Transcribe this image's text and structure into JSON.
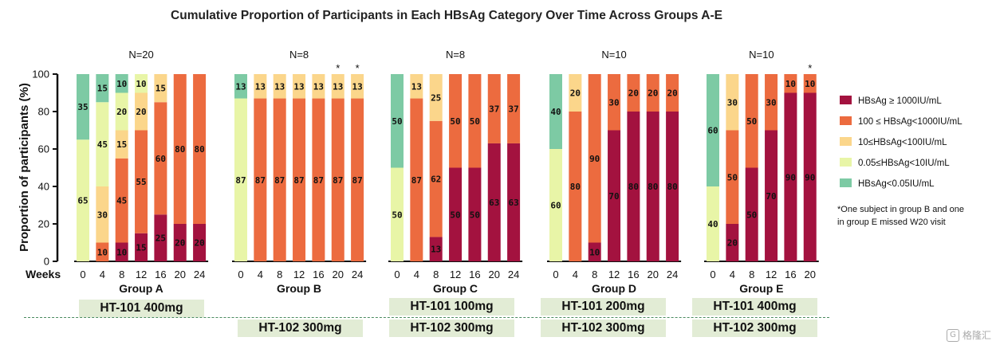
{
  "chart_data": {
    "type": "bar",
    "stacked": true,
    "title": "Cumulative Proportion of Participants in Each HBsAg Category Over Time Across Groups A-E",
    "ylabel": "Proportion of participants (%)",
    "xlabel": "Weeks",
    "ylim": [
      0,
      100
    ],
    "yticks": [
      0,
      20,
      40,
      60,
      80,
      100
    ],
    "grid": false,
    "legend_position": "right",
    "categories_legend": [
      {
        "name": "HBsAg ≥ 1000IU/mL",
        "color": "#a3123f"
      },
      {
        "name": "100 ≤ HBsAg<1000IU/mL",
        "color": "#ec6b3f"
      },
      {
        "name": "10≤HBsAg<100IU/mL",
        "color": "#fbd68b"
      },
      {
        "name": "0.05≤HBsAg<10IU/mL",
        "color": "#e8f5a7"
      },
      {
        "name": "HBsAg<0.05IU/mL",
        "color": "#7dcaa4"
      }
    ],
    "groups": [
      {
        "name": "Group A",
        "n_label": "N=20",
        "weeks": [
          "0",
          "4",
          "8",
          "12",
          "16",
          "20",
          "24"
        ],
        "asterisks": [],
        "series": [
          [
            0,
            0,
            10,
            15,
            25,
            20,
            20
          ],
          [
            0,
            10,
            45,
            55,
            60,
            80,
            80
          ],
          [
            0,
            30,
            15,
            20,
            15,
            0,
            0
          ],
          [
            65,
            45,
            20,
            10,
            0,
            0,
            0
          ],
          [
            35,
            15,
            10,
            0,
            0,
            0,
            0
          ]
        ]
      },
      {
        "name": "Group B",
        "n_label": "N=8",
        "weeks": [
          "0",
          "4",
          "8",
          "12",
          "16",
          "20",
          "24"
        ],
        "asterisks": [
          "20",
          "24"
        ],
        "series": [
          [
            0,
            0,
            0,
            0,
            0,
            0,
            0
          ],
          [
            0,
            87,
            87,
            87,
            87,
            87,
            87
          ],
          [
            0,
            13,
            13,
            13,
            13,
            13,
            13
          ],
          [
            87,
            0,
            0,
            0,
            0,
            0,
            0
          ],
          [
            13,
            0,
            0,
            0,
            0,
            0,
            0
          ]
        ]
      },
      {
        "name": "Group C",
        "n_label": "N=8",
        "weeks": [
          "0",
          "4",
          "8",
          "12",
          "16",
          "20",
          "24"
        ],
        "asterisks": [],
        "series": [
          [
            0,
            0,
            13,
            50,
            50,
            63,
            63
          ],
          [
            0,
            87,
            62,
            50,
            50,
            37,
            37
          ],
          [
            0,
            13,
            25,
            0,
            0,
            0,
            0
          ],
          [
            50,
            0,
            0,
            0,
            0,
            0,
            0
          ],
          [
            50,
            0,
            0,
            0,
            0,
            0,
            0
          ]
        ]
      },
      {
        "name": "Group D",
        "n_label": "N=10",
        "weeks": [
          "0",
          "4",
          "8",
          "12",
          "16",
          "20",
          "24"
        ],
        "asterisks": [],
        "series": [
          [
            0,
            0,
            10,
            70,
            80,
            80,
            80
          ],
          [
            0,
            80,
            90,
            30,
            20,
            20,
            20
          ],
          [
            0,
            20,
            0,
            0,
            0,
            0,
            0
          ],
          [
            60,
            0,
            0,
            0,
            0,
            0,
            0
          ],
          [
            40,
            0,
            0,
            0,
            0,
            0,
            0
          ]
        ]
      },
      {
        "name": "Group E",
        "n_label": "N=10",
        "weeks": [
          "0",
          "4",
          "8",
          "12",
          "16",
          "20"
        ],
        "asterisks": [
          "20"
        ],
        "series": [
          [
            0,
            20,
            50,
            70,
            90,
            90
          ],
          [
            0,
            50,
            50,
            30,
            10,
            10
          ],
          [
            0,
            30,
            0,
            0,
            0,
            0
          ],
          [
            40,
            0,
            0,
            0,
            0,
            0
          ],
          [
            60,
            0,
            0,
            0,
            0,
            0
          ]
        ]
      }
    ],
    "note": "*One subject in group B and one in group E missed W20 visit"
  },
  "doses": {
    "row1": [
      "HT-101 400mg",
      "HT-101 100mg",
      "HT-101 200mg",
      "HT-101 400mg"
    ],
    "row2": [
      "HT-102 300mg",
      "HT-102 300mg",
      "HT-102 300mg",
      "HT-102 300mg"
    ]
  },
  "watermark": "格隆汇"
}
